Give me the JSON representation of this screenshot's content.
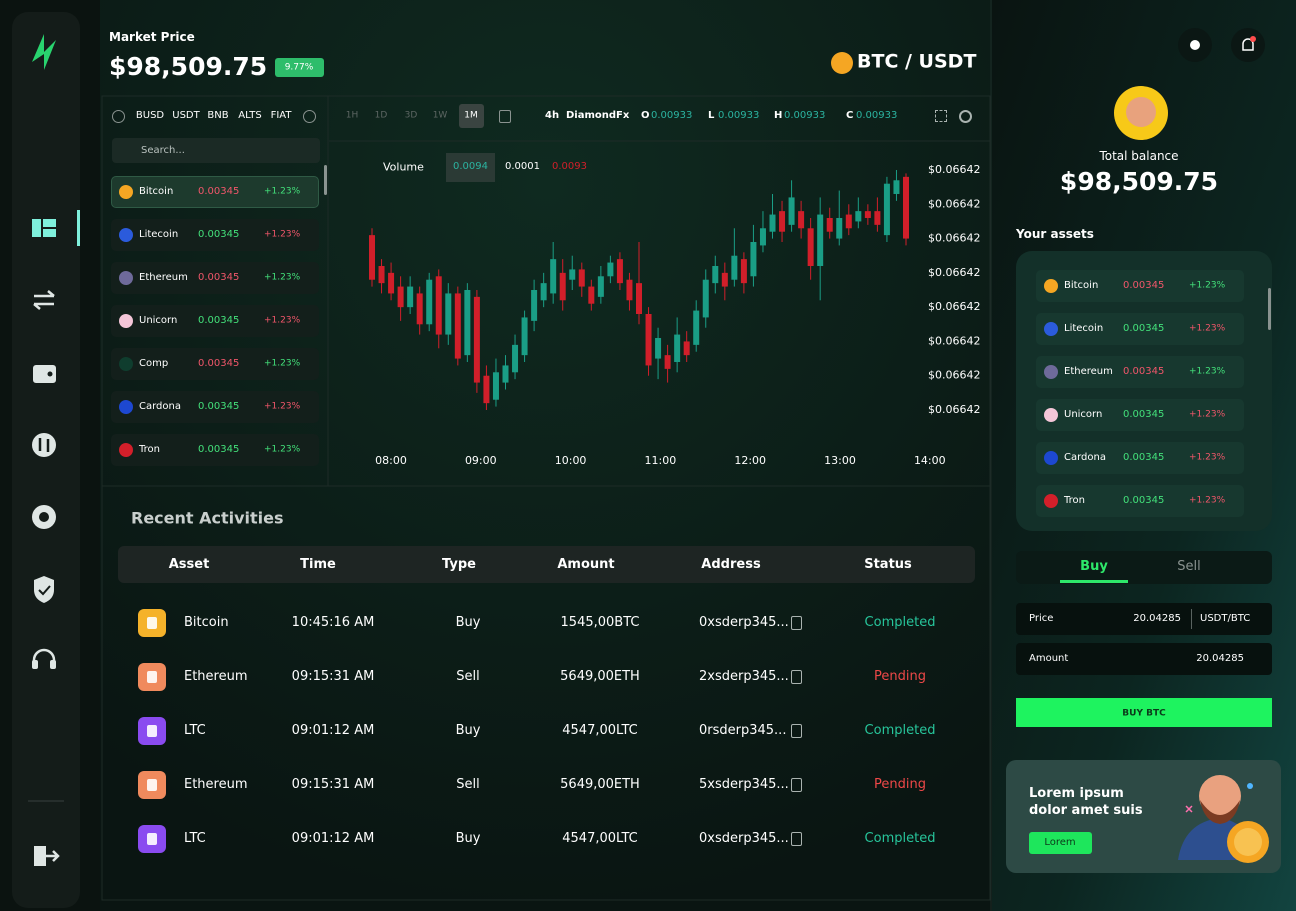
{
  "header": {
    "label": "Market Price",
    "price": "$98,509.75",
    "change": "9.77%",
    "pair": "BTC / USDT"
  },
  "market_tabs": [
    "BUSD",
    "USDT",
    "BNB",
    "ALTS",
    "FIAT"
  ],
  "search_placeholder": "Search...",
  "markets": [
    {
      "name": "Bitcoin",
      "price": "0.00345",
      "change": "+1.23%",
      "icon_color": "#f5a623",
      "price_color": "#f0566a",
      "change_color": "#43e07a"
    },
    {
      "name": "Litecoin",
      "price": "0.00345",
      "change": "+1.23%",
      "icon_color": "#2b5bdc",
      "price_color": "#43e07a",
      "change_color": "#f0566a"
    },
    {
      "name": "Ethereum",
      "price": "0.00345",
      "change": "+1.23%",
      "icon_color": "#6e6a9a",
      "price_color": "#f0566a",
      "change_color": "#43e07a"
    },
    {
      "name": "Unicorn",
      "price": "0.00345",
      "change": "+1.23%",
      "icon_color": "#f4c6d8",
      "price_color": "#43e07a",
      "change_color": "#f0566a"
    },
    {
      "name": "Comp",
      "price": "0.00345",
      "change": "+1.23%",
      "icon_color": "#0f3d2e",
      "price_color": "#f0566a",
      "change_color": "#43e07a"
    },
    {
      "name": "Cardona",
      "price": "0.00345",
      "change": "+1.23%",
      "icon_color": "#1d48d1",
      "price_color": "#43e07a",
      "change_color": "#f0566a"
    },
    {
      "name": "Tron",
      "price": "0.00345",
      "change": "+1.23%",
      "icon_color": "#d31f2a",
      "price_color": "#43e07a",
      "change_color": "#43e07a"
    }
  ],
  "timeframes": [
    "1H",
    "1D",
    "3D",
    "1W",
    "1M"
  ],
  "ohlc": {
    "interval": "4h",
    "source": "DiamondFx",
    "o_label": "O",
    "o": "0.00933",
    "l_label": "L",
    "l": "0.00933",
    "h_label": "H",
    "h": "0.00933",
    "c_label": "C",
    "c": "0.00933"
  },
  "volume": {
    "label": "Volume",
    "v1": "0.0094",
    "v2": "0.0001",
    "v3": "0.0093"
  },
  "chart_data": {
    "type": "candlestick",
    "up_color": "#1a9e86",
    "down_color": "#d11f2a",
    "x_axis_labels": [
      "08:00",
      "09:00",
      "10:00",
      "11:00",
      "12:00",
      "13:00",
      "14:00"
    ],
    "ylim": [
      -0.3,
      7.3
    ],
    "yticks": [
      {
        "value": 7,
        "label": "$0.06642"
      },
      {
        "value": 6,
        "label": "$0.06642"
      },
      {
        "value": 5,
        "label": "$0.06642"
      },
      {
        "value": 4,
        "label": "$0.06642"
      },
      {
        "value": 3,
        "label": "$0.06642"
      },
      {
        "value": 2,
        "label": "$0.06642"
      },
      {
        "value": 1,
        "label": "$0.06642"
      },
      {
        "value": 0,
        "label": "$0.06642"
      }
    ],
    "open": [
      5.1,
      4.2,
      4.0,
      3.6,
      3.0,
      3.4,
      2.5,
      3.9,
      2.2,
      3.4,
      1.6,
      3.3,
      1.0,
      0.3,
      0.8,
      1.1,
      1.6,
      2.6,
      3.2,
      3.4,
      4.0,
      3.8,
      4.1,
      3.6,
      3.3,
      3.9,
      4.4,
      3.8,
      3.7,
      2.8,
      1.5,
      1.6,
      1.4,
      2.0,
      1.9,
      2.7,
      3.7,
      4.0,
      3.8,
      4.4,
      3.9,
      4.8,
      5.2,
      5.8,
      5.4,
      5.8,
      5.3,
      4.2,
      5.6,
      5.0,
      5.7,
      5.5,
      5.8,
      5.8,
      5.1,
      6.3,
      6.8
    ],
    "high": [
      5.3,
      4.4,
      4.3,
      3.9,
      3.9,
      3.6,
      4.0,
      4.1,
      3.7,
      3.6,
      3.7,
      3.5,
      1.3,
      1.5,
      1.6,
      2.2,
      2.9,
      3.8,
      4.0,
      4.9,
      4.4,
      4.5,
      4.3,
      3.8,
      4.2,
      4.5,
      4.6,
      4.0,
      4.9,
      3.0,
      2.4,
      1.9,
      2.7,
      2.3,
      3.2,
      4.1,
      4.5,
      4.3,
      5.3,
      4.6,
      5.4,
      5.8,
      6.3,
      6.1,
      6.7,
      6.1,
      5.6,
      6.2,
      5.9,
      6.4,
      6.0,
      6.2,
      6.0,
      6.2,
      6.8,
      7.0,
      6.9
    ],
    "low": [
      3.6,
      3.4,
      3.2,
      2.6,
      2.8,
      2.2,
      2.3,
      1.8,
      1.9,
      1.3,
      1.4,
      0.5,
      0.0,
      0.1,
      0.6,
      0.9,
      1.4,
      2.3,
      3.0,
      3.1,
      2.9,
      3.5,
      3.3,
      2.9,
      3.1,
      3.7,
      3.5,
      2.9,
      2.5,
      1.0,
      0.9,
      0.8,
      1.1,
      1.4,
      1.7,
      2.4,
      3.4,
      3.2,
      3.6,
      3.4,
      3.6,
      4.6,
      5.0,
      4.9,
      5.2,
      5.0,
      3.8,
      3.2,
      5.0,
      4.8,
      5.1,
      5.3,
      5.4,
      5.2,
      4.9,
      6.1,
      4.8
    ],
    "close": [
      3.8,
      3.7,
      3.4,
      3.0,
      3.6,
      2.5,
      3.8,
      2.2,
      3.4,
      1.5,
      3.5,
      0.8,
      0.2,
      1.1,
      1.3,
      1.9,
      2.7,
      3.5,
      3.7,
      4.4,
      3.2,
      4.1,
      3.6,
      3.1,
      3.9,
      4.3,
      3.7,
      3.2,
      2.8,
      1.3,
      2.1,
      1.2,
      2.2,
      1.6,
      2.9,
      3.8,
      4.2,
      3.6,
      4.5,
      3.7,
      4.9,
      5.3,
      5.7,
      5.2,
      6.2,
      5.3,
      4.2,
      5.7,
      5.2,
      5.6,
      5.3,
      5.8,
      5.6,
      5.4,
      6.6,
      6.7,
      5.0
    ]
  },
  "recent": {
    "title": "Recent Activities",
    "columns": [
      "Asset",
      "Time",
      "Type",
      "Amount",
      "Address",
      "Status"
    ],
    "rows": [
      {
        "asset": "Bitcoin",
        "time": "10:45:16 AM",
        "type": "Buy",
        "amount": "1545,00BTC",
        "address": "0xsderp345...",
        "status": "Completed",
        "status_color": "#27c59b",
        "icon_color": "#f5b22a"
      },
      {
        "asset": "Ethereum",
        "time": "09:15:31 AM",
        "type": "Sell",
        "amount": "5649,00ETH",
        "address": "2xsderp345...",
        "status": "Pending",
        "status_color": "#ee4848",
        "icon_color": "#f08a5d"
      },
      {
        "asset": "LTC",
        "time": "09:01:12 AM",
        "type": "Buy",
        "amount": "4547,00LTC",
        "address": "0rsderp345...",
        "status": "Completed",
        "status_color": "#27c59b",
        "icon_color": "#8a4bf0"
      },
      {
        "asset": "Ethereum",
        "time": "09:15:31 AM",
        "type": "Sell",
        "amount": "5649,00ETH",
        "address": "5xsderp345...",
        "status": "Pending",
        "status_color": "#ee4848",
        "icon_color": "#f08a5d"
      },
      {
        "asset": "LTC",
        "time": "09:01:12 AM",
        "type": "Buy",
        "amount": "4547,00LTC",
        "address": "0xsderp345...",
        "status": "Completed",
        "status_color": "#27c59b",
        "icon_color": "#8a4bf0"
      }
    ]
  },
  "balance": {
    "label": "Total balance",
    "value": "$98,509.75"
  },
  "assets": {
    "title": "Your assets",
    "items": [
      {
        "name": "Bitcoin",
        "price": "0.00345",
        "change": "+1.23%",
        "icon_color": "#f5a623",
        "price_color": "#f0566a",
        "change_color": "#43e07a"
      },
      {
        "name": "Litecoin",
        "price": "0.00345",
        "change": "+1.23%",
        "icon_color": "#2b5bdc",
        "price_color": "#43e07a",
        "change_color": "#f0566a"
      },
      {
        "name": "Ethereum",
        "price": "0.00345",
        "change": "+1.23%",
        "icon_color": "#6e6a9a",
        "price_color": "#f0566a",
        "change_color": "#43e07a"
      },
      {
        "name": "Unicorn",
        "price": "0.00345",
        "change": "+1.23%",
        "icon_color": "#f4c6d8",
        "price_color": "#43e07a",
        "change_color": "#f0566a"
      },
      {
        "name": "Cardona",
        "price": "0.00345",
        "change": "+1.23%",
        "icon_color": "#1d48d1",
        "price_color": "#43e07a",
        "change_color": "#f0566a"
      },
      {
        "name": "Tron",
        "price": "0.00345",
        "change": "+1.23%",
        "icon_color": "#d31f2a",
        "price_color": "#43e07a",
        "change_color": "#f0566a"
      }
    ]
  },
  "trade": {
    "tabs": [
      "Buy",
      "Sell"
    ],
    "price_label": "Price",
    "price": "20.04285",
    "pair": "USDT/BTC",
    "amount_label": "Amount",
    "amount": "20.04285",
    "button": "BUY BTC"
  },
  "promo": {
    "text": "Lorem ipsum dolor amet suis",
    "button": "Lorem"
  }
}
